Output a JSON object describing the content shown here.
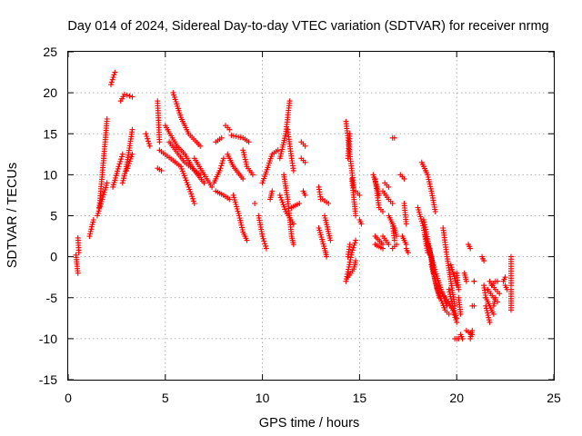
{
  "chart_data": {
    "type": "scatter",
    "title": "Day 014 of 2024, Sidereal Day-to-day VTEC variation (SDTVAR) for receiver nrmg",
    "xlabel": "GPS time / hours",
    "ylabel": "SDTVAR / TECUs",
    "xlim": [
      0,
      25
    ],
    "ylim": [
      -15,
      25
    ],
    "xticks": [
      0,
      5,
      10,
      15,
      20,
      25
    ],
    "yticks": [
      -15,
      -10,
      -5,
      0,
      5,
      10,
      15,
      20,
      25
    ],
    "xtick_labels": [
      "0",
      "5",
      "10",
      "15",
      "20",
      "25"
    ],
    "ytick_labels": [
      "-15",
      "-10",
      "-5",
      "0",
      "5",
      "10",
      "15",
      "20",
      "25"
    ],
    "grid": true,
    "marker": "plus",
    "color": "#ff0000",
    "series": [
      {
        "name": "tracks",
        "segments": [
          [
            [
              0.4,
              0.2
            ],
            [
              0.5,
              -2.0
            ]
          ],
          [
            [
              0.5,
              2.3
            ],
            [
              0.55,
              0.5
            ]
          ],
          [
            [
              1.1,
              2.5
            ],
            [
              1.3,
              4.5
            ]
          ],
          [
            [
              1.5,
              5.0
            ],
            [
              2.0,
              9.0
            ]
          ],
          [
            [
              1.6,
              6.0
            ],
            [
              1.9,
              14.0
            ],
            [
              2.0,
              16.8
            ]
          ],
          [
            [
              2.2,
              21.0
            ],
            [
              2.4,
              22.5
            ]
          ],
          [
            [
              2.3,
              8.5
            ],
            [
              2.6,
              11.0
            ],
            [
              2.8,
              12.5
            ]
          ],
          [
            [
              2.7,
              19.0
            ],
            [
              2.9,
              19.8
            ],
            [
              3.3,
              19.5
            ]
          ],
          [
            [
              2.8,
              9.0
            ],
            [
              3.0,
              11.0
            ],
            [
              3.3,
              15.5
            ]
          ],
          [
            [
              3.0,
              10.5
            ],
            [
              3.3,
              12.5
            ]
          ],
          [
            [
              4.0,
              15.0
            ],
            [
              4.2,
              13.5
            ]
          ],
          [
            [
              4.6,
              19.0
            ],
            [
              4.7,
              14.0
            ]
          ],
          [
            [
              4.6,
              10.8
            ],
            [
              4.8,
              10.5
            ]
          ],
          [
            [
              4.7,
              13.0
            ],
            [
              5.8,
              11.0
            ],
            [
              6.2,
              8.5
            ],
            [
              6.5,
              6.5
            ]
          ],
          [
            [
              5.0,
              16.0
            ],
            [
              5.6,
              13.5
            ],
            [
              6.0,
              12.5
            ],
            [
              6.5,
              10.5
            ],
            [
              7.0,
              9.0
            ]
          ],
          [
            [
              5.2,
              14.0
            ],
            [
              6.0,
              11.5
            ],
            [
              6.8,
              10.0
            ]
          ],
          [
            [
              5.4,
              20.0
            ],
            [
              5.8,
              17.0
            ],
            [
              6.2,
              15.0
            ],
            [
              6.8,
              13.5
            ]
          ],
          [
            [
              6.5,
              12.0
            ],
            [
              7.0,
              10.0
            ],
            [
              7.4,
              8.5
            ]
          ],
          [
            [
              7.5,
              9.0
            ],
            [
              7.8,
              10.5
            ],
            [
              8.0,
              12.0
            ]
          ],
          [
            [
              7.6,
              14.0
            ],
            [
              7.9,
              14.5
            ]
          ],
          [
            [
              7.6,
              8.0
            ],
            [
              8.0,
              7.5
            ],
            [
              8.3,
              7.0
            ]
          ],
          [
            [
              8.1,
              16.0
            ],
            [
              8.3,
              15.5
            ]
          ],
          [
            [
              8.2,
              12.5
            ],
            [
              8.5,
              11.0
            ],
            [
              9.0,
              9.5
            ]
          ],
          [
            [
              8.4,
              14.8
            ],
            [
              9.0,
              14.5
            ],
            [
              9.3,
              14.0
            ]
          ],
          [
            [
              8.5,
              7.5
            ],
            [
              8.8,
              5.0
            ],
            [
              9.0,
              3.0
            ],
            [
              9.2,
              2.0
            ]
          ],
          [
            [
              9.0,
              13.0
            ],
            [
              9.2,
              11.0
            ],
            [
              9.5,
              10.0
            ]
          ],
          [
            [
              9.6,
              6.5
            ]
          ],
          [
            [
              9.8,
              5.0
            ],
            [
              10.0,
              2.5
            ],
            [
              10.2,
              1.0
            ]
          ],
          [
            [
              10.0,
              9.0
            ],
            [
              10.5,
              12.5
            ],
            [
              10.8,
              13.0
            ]
          ],
          [
            [
              10.4,
              7.0
            ],
            [
              10.5,
              8.0
            ]
          ],
          [
            [
              10.9,
              12.0
            ],
            [
              11.2,
              15.0
            ],
            [
              11.4,
              19.0
            ]
          ],
          [
            [
              10.9,
              7.5
            ],
            [
              11.2,
              5.5
            ],
            [
              11.6,
              4.0
            ]
          ],
          [
            [
              11.1,
              10.0
            ],
            [
              11.3,
              7.0
            ],
            [
              11.5,
              2.5
            ],
            [
              11.6,
              1.5
            ]
          ],
          [
            [
              11.3,
              15.5
            ],
            [
              11.5,
              12.0
            ],
            [
              11.6,
              10.5
            ]
          ],
          [
            [
              11.5,
              6.0
            ],
            [
              11.9,
              6.5
            ]
          ],
          [
            [
              12.0,
              14.0
            ],
            [
              12.2,
              13.5
            ]
          ],
          [
            [
              12.0,
              12.0
            ],
            [
              12.2,
              11.5
            ]
          ],
          [
            [
              12.1,
              8.0
            ],
            [
              12.2,
              7.5
            ]
          ],
          [
            [
              12.9,
              8.5
            ],
            [
              13.0,
              7.0
            ]
          ],
          [
            [
              12.9,
              3.5
            ],
            [
              13.2,
              1.0
            ],
            [
              13.3,
              0.0
            ]
          ],
          [
            [
              13.1,
              7.0
            ],
            [
              13.4,
              6.5
            ]
          ],
          [
            [
              13.2,
              5.0
            ],
            [
              13.5,
              2.0
            ]
          ],
          [
            [
              14.3,
              16.5
            ],
            [
              14.6,
              10.5
            ],
            [
              14.7,
              8.5
            ]
          ],
          [
            [
              14.4,
              12.0
            ],
            [
              14.5,
              15.0
            ]
          ],
          [
            [
              14.4,
              0.0
            ],
            [
              14.5,
              1.5
            ]
          ],
          [
            [
              14.3,
              -3.0
            ],
            [
              14.6,
              0.5
            ],
            [
              14.8,
              2.0
            ]
          ],
          [
            [
              14.4,
              -2.5
            ],
            [
              14.7,
              -1.5
            ],
            [
              14.8,
              -0.5
            ]
          ],
          [
            [
              14.6,
              9.5
            ],
            [
              14.8,
              5.0
            ]
          ],
          [
            [
              14.8,
              8.0
            ],
            [
              15.0,
              7.5
            ]
          ],
          [
            [
              15.0,
              4.5
            ],
            [
              15.1,
              4.0
            ]
          ],
          [
            [
              15.7,
              10.0
            ],
            [
              15.9,
              8.5
            ],
            [
              16.0,
              7.5
            ]
          ],
          [
            [
              15.8,
              9.5
            ],
            [
              16.0,
              6.0
            ],
            [
              16.2,
              5.5
            ]
          ],
          [
            [
              15.8,
              2.5
            ],
            [
              16.2,
              1.5
            ]
          ],
          [
            [
              15.8,
              1.5
            ],
            [
              16.2,
              1.0
            ]
          ],
          [
            [
              16.2,
              8.0
            ],
            [
              16.5,
              7.0
            ],
            [
              16.7,
              6.5
            ]
          ],
          [
            [
              16.3,
              9.0
            ],
            [
              16.5,
              8.5
            ]
          ],
          [
            [
              16.2,
              2.5
            ],
            [
              16.5,
              1.5
            ]
          ],
          [
            [
              16.5,
              5.0
            ],
            [
              16.8,
              3.5
            ],
            [
              16.9,
              2.5
            ]
          ],
          [
            [
              16.7,
              4.0
            ],
            [
              16.8,
              2.0
            ]
          ],
          [
            [
              16.7,
              14.5
            ],
            [
              16.8,
              14.5
            ]
          ],
          [
            [
              16.7,
              1.0
            ],
            [
              16.9,
              1.5
            ]
          ],
          [
            [
              17.1,
              10.0
            ],
            [
              17.3,
              9.5
            ]
          ],
          [
            [
              17.3,
              6.5
            ],
            [
              17.4,
              4.0
            ]
          ],
          [
            [
              17.2,
              2.5
            ],
            [
              17.4,
              1.5
            ]
          ],
          [
            [
              17.4,
              1.0
            ],
            [
              17.5,
              0.5
            ]
          ],
          [
            [
              18.0,
              6.0
            ],
            [
              18.3,
              3.5
            ],
            [
              18.5,
              0.5
            ]
          ],
          [
            [
              18.2,
              11.5
            ],
            [
              18.5,
              10.0
            ],
            [
              18.7,
              8.0
            ],
            [
              18.9,
              5.5
            ]
          ],
          [
            [
              18.3,
              4.5
            ],
            [
              18.6,
              1.0
            ],
            [
              18.8,
              -2.0
            ]
          ],
          [
            [
              18.4,
              2.5
            ],
            [
              18.7,
              0.0
            ],
            [
              18.9,
              -3.0
            ],
            [
              19.1,
              -5.0
            ]
          ],
          [
            [
              18.5,
              1.5
            ],
            [
              18.8,
              -1.0
            ],
            [
              19.2,
              -4.0
            ],
            [
              19.5,
              -6.0
            ]
          ],
          [
            [
              18.7,
              -1.0
            ],
            [
              19.0,
              -4.0
            ],
            [
              19.4,
              -6.5
            ],
            [
              19.6,
              -7.0
            ]
          ],
          [
            [
              19.0,
              -3.5
            ],
            [
              19.4,
              -5.0
            ],
            [
              19.7,
              -6.0
            ]
          ],
          [
            [
              19.3,
              3.5
            ],
            [
              19.5,
              0.0
            ],
            [
              19.7,
              -3.0
            ],
            [
              19.9,
              -6.0
            ]
          ],
          [
            [
              19.5,
              -5.5
            ],
            [
              19.8,
              -6.5
            ],
            [
              20.0,
              -8.0
            ]
          ],
          [
            [
              19.6,
              -4.0
            ],
            [
              19.8,
              -6.0
            ],
            [
              20.0,
              -7.5
            ]
          ],
          [
            [
              19.7,
              -1.0
            ],
            [
              20.0,
              -3.5
            ]
          ],
          [
            [
              19.9,
              -10.0
            ],
            [
              20.1,
              -10.0
            ]
          ],
          [
            [
              20.0,
              -2.0
            ],
            [
              20.1,
              -4.0
            ]
          ],
          [
            [
              20.1,
              -5.0
            ],
            [
              20.2,
              -7.0
            ]
          ],
          [
            [
              20.2,
              -9.5
            ],
            [
              20.3,
              -10.0
            ]
          ],
          [
            [
              20.4,
              -2.0
            ],
            [
              20.5,
              -3.0
            ]
          ],
          [
            [
              20.5,
              -9.0
            ],
            [
              20.8,
              -9.5
            ]
          ],
          [
            [
              20.6,
              1.5
            ],
            [
              20.7,
              1.0
            ]
          ],
          [
            [
              20.7,
              -10.0
            ],
            [
              20.8,
              -9.0
            ]
          ],
          [
            [
              20.8,
              -6.0
            ],
            [
              20.9,
              -6.0
            ]
          ],
          [
            [
              20.9,
              -3.0
            ],
            [
              20.9,
              -3.0
            ]
          ],
          [
            [
              21.3,
              0.0
            ],
            [
              21.4,
              -0.5
            ]
          ],
          [
            [
              21.4,
              -3.5
            ],
            [
              21.5,
              -5.0
            ]
          ],
          [
            [
              21.5,
              -6.0
            ],
            [
              21.7,
              -8.0
            ]
          ],
          [
            [
              21.5,
              -5.0
            ],
            [
              21.8,
              -6.5
            ],
            [
              21.9,
              -7.0
            ]
          ],
          [
            [
              21.6,
              -4.0
            ],
            [
              21.9,
              -5.0
            ],
            [
              22.1,
              -5.5
            ]
          ],
          [
            [
              21.7,
              -3.0
            ],
            [
              22.0,
              -4.0
            ],
            [
              22.2,
              -4.5
            ]
          ],
          [
            [
              21.8,
              -3.5
            ],
            [
              22.0,
              -3.0
            ],
            [
              22.1,
              -3.0
            ]
          ],
          [
            [
              21.9,
              -6.0
            ],
            [
              22.0,
              -5.0
            ]
          ],
          [
            [
              22.4,
              -3.0
            ],
            [
              22.5,
              -2.5
            ]
          ],
          [
            [
              22.5,
              -3.5
            ],
            [
              22.6,
              -4.0
            ]
          ],
          [
            [
              22.8,
              0.0
            ],
            [
              22.8,
              -3.5
            ]
          ],
          [
            [
              22.8,
              -4.0
            ],
            [
              22.8,
              -6.5
            ]
          ]
        ]
      }
    ]
  }
}
